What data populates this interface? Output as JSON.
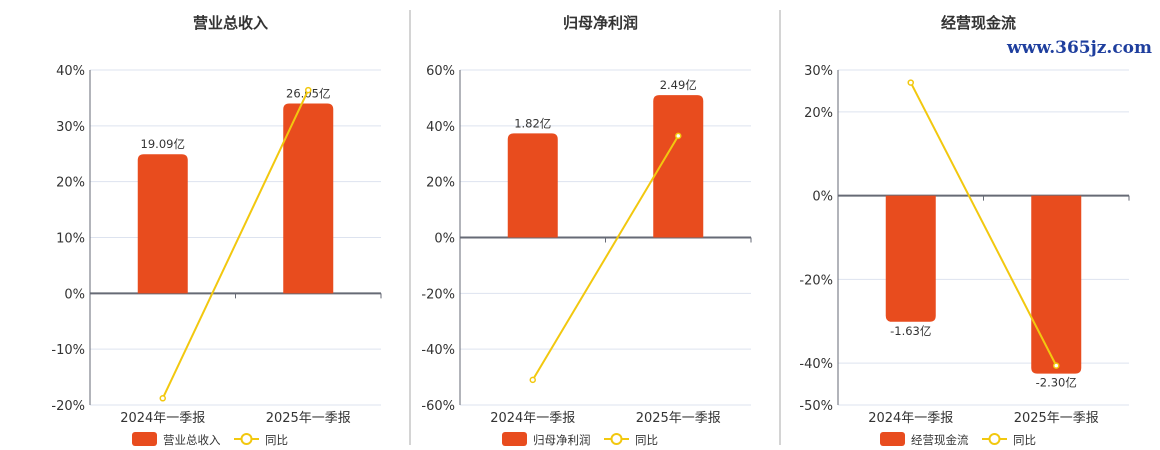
{
  "colors": {
    "bar": "#e84c1e",
    "line": "#f2c80f",
    "grid": "#dde3ef",
    "axis": "#666a75",
    "divider": "#aaaaaa"
  },
  "watermark": "www.365jz.com",
  "chart_data": [
    {
      "type": "bar+line",
      "title": "营业总收入",
      "categories": [
        "2024年一季报",
        "2025年一季报"
      ],
      "yticks": [
        40,
        30,
        20,
        10,
        0,
        -10,
        -20
      ],
      "ylim": [
        -20,
        40
      ],
      "tick_suffix": "%",
      "grid": true,
      "legend_position": "bottom",
      "series": [
        {
          "name": "营业总收入",
          "kind": "bar",
          "values": [
            19.09,
            26.05
          ],
          "labels": [
            "19.09亿",
            "26.05亿"
          ]
        },
        {
          "name": "同比",
          "kind": "line",
          "values": [
            -18.8,
            36.4
          ]
        }
      ]
    },
    {
      "type": "bar+line",
      "title": "归母净利润",
      "categories": [
        "2024年一季报",
        "2025年一季报"
      ],
      "yticks": [
        60,
        40,
        20,
        0,
        -20,
        -40,
        -60
      ],
      "ylim": [
        -60,
        60
      ],
      "tick_suffix": "%",
      "grid": true,
      "legend_position": "bottom",
      "series": [
        {
          "name": "归母净利润",
          "kind": "bar",
          "values": [
            1.82,
            2.49
          ],
          "labels": [
            "1.82亿",
            "2.49亿"
          ]
        },
        {
          "name": "同比",
          "kind": "line",
          "values": [
            -51.0,
            36.4
          ]
        }
      ]
    },
    {
      "type": "bar+line",
      "title": "经营现金流",
      "categories": [
        "2024年一季报",
        "2025年一季报"
      ],
      "yticks": [
        30,
        20,
        0,
        -20,
        -40,
        -50
      ],
      "ylim": [
        -50,
        30
      ],
      "tick_suffix": "%",
      "grid": true,
      "legend_position": "bottom",
      "series": [
        {
          "name": "经营现金流",
          "kind": "bar",
          "values": [
            -1.63,
            -2.3
          ],
          "labels": [
            "-1.63亿",
            "-2.30亿"
          ]
        },
        {
          "name": "同比",
          "kind": "line",
          "values": [
            27.0,
            -40.6
          ]
        }
      ]
    }
  ]
}
